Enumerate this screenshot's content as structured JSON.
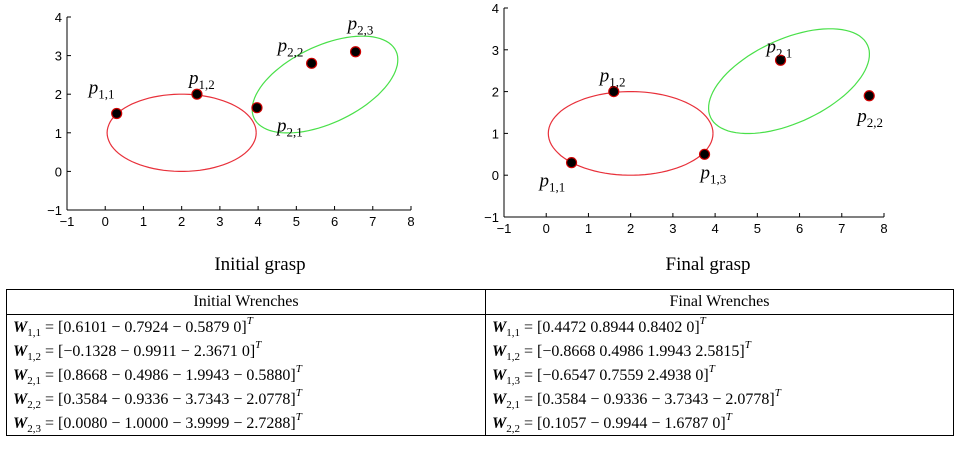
{
  "chart_data": [
    {
      "type": "scatter",
      "caption": "Initial grasp",
      "xlim": [
        -1,
        8
      ],
      "ylim": [
        -1,
        4
      ],
      "xticks": [
        "-1",
        "0",
        "1",
        "2",
        "3",
        "4",
        "5",
        "6",
        "7",
        "8"
      ],
      "yticks": [
        "-1",
        "0",
        "1",
        "2",
        "3",
        "4"
      ],
      "ellipses": [
        {
          "color": "#e8303a",
          "cx": 2.0,
          "cy": 1.0,
          "rx": 1.95,
          "ry": 1.0,
          "angle": 0
        },
        {
          "color": "#49e049",
          "cx": 5.75,
          "cy": 2.25,
          "rx": 2.05,
          "ry": 1.0,
          "angle": 25
        }
      ],
      "points": [
        {
          "label": "p",
          "sub": "1,1",
          "x": 0.3,
          "y": 1.5
        },
        {
          "label": "p",
          "sub": "1,2",
          "x": 2.4,
          "y": 2.0
        },
        {
          "label": "p",
          "sub": "2,1",
          "x": 3.97,
          "y": 1.65
        },
        {
          "label": "p",
          "sub": "2,2",
          "x": 5.4,
          "y": 2.8
        },
        {
          "label": "p",
          "sub": "2,3",
          "x": 6.55,
          "y": 3.1
        }
      ]
    },
    {
      "type": "scatter",
      "caption": "Final grasp",
      "xlim": [
        -1,
        8
      ],
      "ylim": [
        -1,
        4
      ],
      "xticks": [
        "-1",
        "0",
        "1",
        "2",
        "3",
        "4",
        "5",
        "6",
        "7",
        "8"
      ],
      "yticks": [
        "-1",
        "0",
        "1",
        "2",
        "3",
        "4"
      ],
      "ellipses": [
        {
          "color": "#e8303a",
          "cx": 2.0,
          "cy": 1.0,
          "rx": 1.95,
          "ry": 1.0,
          "angle": 0
        },
        {
          "color": "#49e049",
          "cx": 5.75,
          "cy": 2.25,
          "rx": 2.05,
          "ry": 1.0,
          "angle": 25
        }
      ],
      "points": [
        {
          "label": "p",
          "sub": "1,1",
          "x": 0.6,
          "y": 0.3
        },
        {
          "label": "p",
          "sub": "1,2",
          "x": 1.6,
          "y": 2.0
        },
        {
          "label": "p",
          "sub": "1,3",
          "x": 3.75,
          "y": 0.5
        },
        {
          "label": "p",
          "sub": "2,1",
          "x": 5.55,
          "y": 2.75
        },
        {
          "label": "p",
          "sub": "2,2",
          "x": 7.65,
          "y": 1.9
        }
      ]
    }
  ],
  "table": {
    "headers": [
      "Initial Wrenches",
      "Final Wrenches"
    ],
    "rows": [
      [
        {
          "sym": "W",
          "sub": "1,1",
          "eq": " = [0.6101  − 0.7924  − 0.5879 0]",
          "sup": "T"
        },
        {
          "sym": "W",
          "sub": "1,1",
          "eq": " = [0.4472 0.8944 0.8402 0]",
          "sup": "T"
        }
      ],
      [
        {
          "sym": "W",
          "sub": "1,2",
          "eq": " = [−0.1328  − 0.9911  − 2.3671 0]",
          "sup": "T"
        },
        {
          "sym": "W",
          "sub": "1,2",
          "eq": " = [−0.8668 0.4986 1.9943 2.5815]",
          "sup": "T"
        }
      ],
      [
        {
          "sym": "W",
          "sub": "2,1",
          "eq": " = [0.8668  − 0.4986  − 1.9943  − 0.5880]",
          "sup": "T"
        },
        {
          "sym": "W",
          "sub": "1,3",
          "eq": " = [−0.6547 0.7559 2.4938 0]",
          "sup": "T"
        }
      ],
      [
        {
          "sym": "W",
          "sub": "2,2",
          "eq": " = [0.3584  − 0.9336  − 3.7343  − 2.0778]",
          "sup": "T"
        },
        {
          "sym": "W",
          "sub": "2,1",
          "eq": " = [0.3584  − 0.9336  − 3.7343  − 2.0778]",
          "sup": "T"
        }
      ],
      [
        {
          "sym": "W",
          "sub": "2,3",
          "eq": " = [0.0080  − 1.0000  − 3.9999  − 2.7288]",
          "sup": "T"
        },
        {
          "sym": "W",
          "sub": "2,2",
          "eq": " = [0.1057  − 0.9944  − 1.6787 0]",
          "sup": "T"
        }
      ]
    ]
  }
}
